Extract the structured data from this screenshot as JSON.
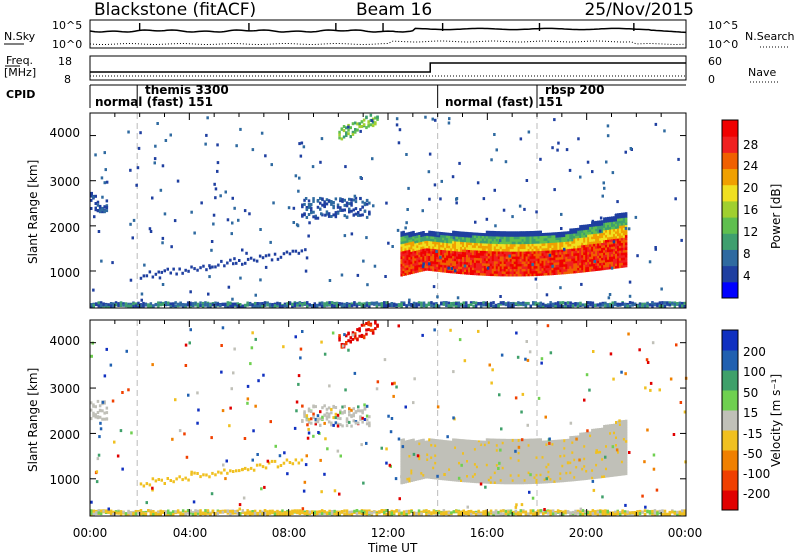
{
  "header": {
    "title_left": "Blackstone (fitACF)",
    "title_center": "Beam 16",
    "title_right": "25/Nov/2015"
  },
  "top_panels": {
    "nsky_label": "N.Sky",
    "nsky_ticks": [
      "10^5",
      "10^0"
    ],
    "nsearch_label": "N.Search",
    "nsearch_ticks": [
      "10^5",
      "10^0"
    ],
    "freq_label_line1": "Freq.",
    "freq_label_line2": "[MHz]",
    "freq_ticks": [
      "18",
      "8"
    ],
    "nave_label": "Nave",
    "nave_ticks": [
      "60",
      "0"
    ],
    "cpid_label": "CPID",
    "cpid_entries": [
      {
        "text": "normal (fast) 151",
        "t": 0.0
      },
      {
        "text": "themis 3300",
        "t": 1.9
      },
      {
        "text": "normal (fast) 151",
        "t": 14.0
      },
      {
        "text": "rbsp 200",
        "t": 18.0
      }
    ]
  },
  "axes": {
    "xlabel": "Time UT",
    "xticks": [
      "00:00",
      "04:00",
      "08:00",
      "12:00",
      "16:00",
      "20:00",
      "00:00"
    ],
    "ylabel": "Slant Range [km]",
    "yticks": [
      "4000",
      "3000",
      "2000",
      "1000"
    ]
  },
  "colorbar_power": {
    "label": "Power [dB]",
    "ticks": [
      "28",
      "24",
      "20",
      "16",
      "12",
      "8",
      "4"
    ],
    "colors": [
      "#0000ff",
      "#1f3fa0",
      "#2f6aa0",
      "#3f9f6f",
      "#5fbf4f",
      "#a0d030",
      "#f0e020",
      "#f0a000",
      "#f06000",
      "#f02020",
      "#f00000"
    ]
  },
  "colorbar_velocity": {
    "label": "Velocity [m s⁻¹]",
    "ticks": [
      "200",
      "100",
      "50",
      "15",
      "-15",
      "-50",
      "-100",
      "-200"
    ],
    "colors": [
      "#1030c0",
      "#2060b0",
      "#3fa06a",
      "#6fd050",
      "#c0c0b8",
      "#f0c020",
      "#f08000",
      "#f04000",
      "#e00000"
    ]
  },
  "chart_data": {
    "type": "heatmap",
    "title": "Blackstone (fitACF)  Beam 16  25/Nov/2015",
    "xlabel": "Time UT",
    "ylabel": "Slant Range [km]",
    "xlim": [
      0,
      24
    ],
    "ylim": [
      180,
      4500
    ],
    "x_units": "hours UT",
    "panels": [
      {
        "name": "Power [dB]",
        "clim": [
          0,
          30
        ],
        "features": [
          {
            "desc": "ground scatter band",
            "x": [
              0,
              24
            ],
            "y": [
              180,
              280
            ],
            "value": 6
          },
          {
            "desc": "main F-region echo band",
            "x": [
              12.5,
              21.5
            ],
            "y": [
              900,
              1900
            ],
            "value": 22
          },
          {
            "desc": "far echoes",
            "x": [
              8.5,
              11.0
            ],
            "y": [
              2100,
              2600
            ],
            "value": 7
          },
          {
            "desc": "high-range patch",
            "x": [
              10.0,
              11.5
            ],
            "y": [
              3800,
              4400
            ],
            "value": 14
          },
          {
            "desc": "early echoes",
            "x": [
              0.0,
              0.6
            ],
            "y": [
              2300,
              2700
            ],
            "value": 7
          }
        ]
      },
      {
        "name": "Velocity [m s⁻¹]",
        "clim": [
          -250,
          250
        ],
        "features": [
          {
            "desc": "ground scatter band",
            "x": [
              0,
              24
            ],
            "y": [
              180,
              280
            ],
            "value": -40
          },
          {
            "desc": "main F-region echo band",
            "x": [
              12.5,
              21.5
            ],
            "y": [
              900,
              1900
            ],
            "value": 0
          },
          {
            "desc": "far echoes",
            "x": [
              8.5,
              11.0
            ],
            "y": [
              2100,
              2600
            ],
            "value": 0
          },
          {
            "desc": "high-range patch",
            "x": [
              10.0,
              11.5
            ],
            "y": [
              3800,
              4400
            ],
            "value": -200
          }
        ]
      }
    ]
  }
}
